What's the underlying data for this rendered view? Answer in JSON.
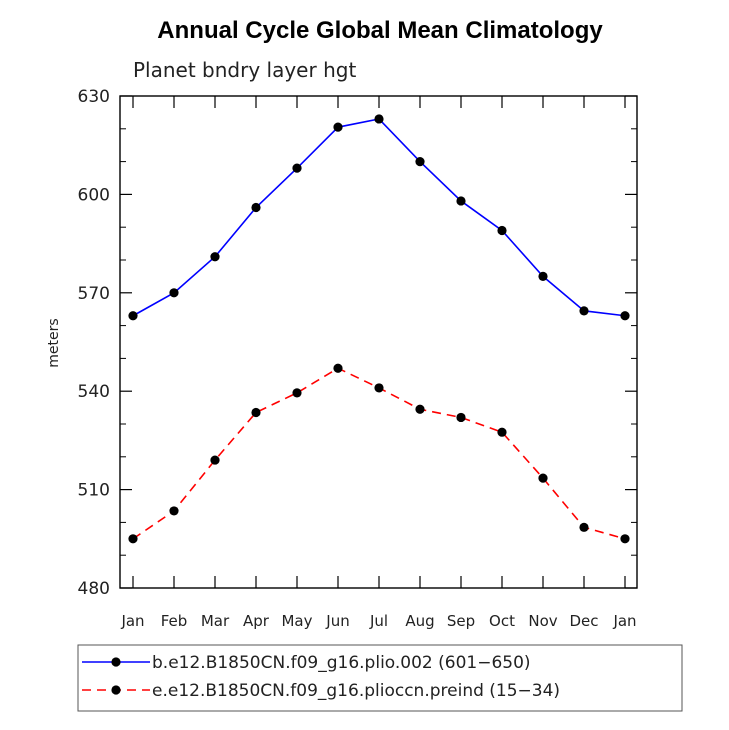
{
  "chart_data": {
    "type": "line",
    "title": "Annual Cycle Global Mean Climatology",
    "subtitle": "Planet bndry layer hgt",
    "xlabel": "",
    "ylabel": "meters",
    "categories": [
      "Jan",
      "Feb",
      "Mar",
      "Apr",
      "May",
      "Jun",
      "Jul",
      "Aug",
      "Sep",
      "Oct",
      "Nov",
      "Dec",
      "Jan"
    ],
    "ylim": [
      480,
      630
    ],
    "yticks": [
      480,
      510,
      540,
      570,
      600,
      630
    ],
    "series": [
      {
        "name": "b.e12.B1850CN.f09_g16.plio.002 (601−650)",
        "color": "#0000ff",
        "dash": "solid",
        "marker": "circle",
        "values": [
          563,
          570,
          581,
          596,
          608,
          620.5,
          623,
          610,
          598,
          589,
          575,
          564.5,
          563
        ]
      },
      {
        "name": "e.e12.B1850CN.f09_g16.plioccn.preind (15−34)",
        "color": "#ff0000",
        "dash": "dashed",
        "marker": "circle",
        "values": [
          495,
          503.5,
          519,
          533.5,
          539.5,
          547,
          541,
          534.5,
          532,
          527.5,
          513.5,
          498.5,
          495
        ]
      }
    ],
    "legend_position": "bottom"
  }
}
